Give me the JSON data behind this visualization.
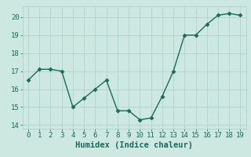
{
  "xlabel": "Humidex (Indice chaleur)",
  "x": [
    0,
    1,
    2,
    3,
    4,
    5,
    6,
    7,
    8,
    9,
    10,
    11,
    12,
    13,
    14,
    15,
    16,
    17,
    18,
    19
  ],
  "y": [
    16.5,
    17.1,
    17.1,
    17.0,
    15.0,
    15.5,
    16.0,
    16.5,
    14.8,
    14.8,
    14.3,
    14.4,
    15.6,
    17.0,
    19.0,
    19.0,
    19.6,
    20.1,
    20.2,
    20.1
  ],
  "line_color": "#1a6b5a",
  "bg_color": "#cce8e0",
  "grid_color": "#aacfc8",
  "tick_color": "#1a6b5a",
  "xlabel_color": "#1a6b5a",
  "ylim": [
    13.8,
    20.6
  ],
  "xlim": [
    -0.5,
    19.5
  ],
  "yticks": [
    14,
    15,
    16,
    17,
    18,
    19,
    20
  ],
  "xticks": [
    0,
    1,
    2,
    3,
    4,
    5,
    6,
    7,
    8,
    9,
    10,
    11,
    12,
    13,
    14,
    15,
    16,
    17,
    18,
    19
  ],
  "marker": "D",
  "markersize": 2.5,
  "linewidth": 1.0,
  "fontsize_tick": 6.5,
  "fontsize_xlabel": 7.5
}
